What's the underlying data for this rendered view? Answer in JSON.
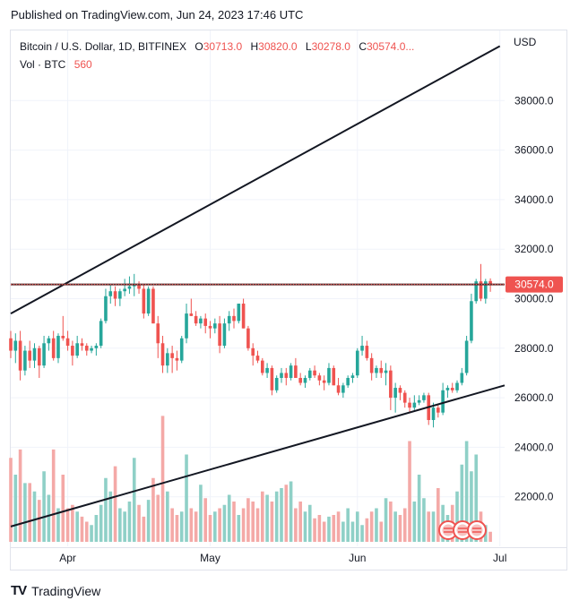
{
  "published": "Published on TradingView.com, Jun 24, 2023 17:46 UTC",
  "legend": {
    "symbol": "Bitcoin / U.S. Dollar, 1D, BITFINEX",
    "open_label": "O",
    "open": "30713.0",
    "high_label": "H",
    "high": "30820.0",
    "low_label": "L",
    "low": "30278.0",
    "close_label": "C",
    "close": "30574.0...",
    "vol_label": "Vol · BTC",
    "vol": "560"
  },
  "currency": "USD",
  "last_price_tag": "30574.0",
  "footer_brand": "TradingView",
  "colors": {
    "up": "#26a69a",
    "down": "#ef5350",
    "vol_up": "#8fd0c7",
    "vol_down": "#f4a9a7",
    "line": "#131722",
    "hline": "#5d2f2f",
    "grid": "#f0f3fa",
    "tag": "#ef5350"
  },
  "chart_data": {
    "type": "candlestick",
    "title": "Bitcoin / U.S. Dollar, 1D, BITFINEX",
    "y_ticks": [
      22000,
      24000,
      26000,
      28000,
      30000,
      32000,
      34000,
      36000,
      38000
    ],
    "y_tick_labels": [
      "22000.0",
      "24000.0",
      "26000.0",
      "28000.0",
      "30000.0",
      "32000.0",
      "34000.0",
      "36000.0",
      "38000.0"
    ],
    "ylim": [
      20000,
      40000
    ],
    "x_tick_labels": [
      "Apr",
      "May",
      "Jun",
      "Jul"
    ],
    "x_tick_dates": [
      "2023-04-01",
      "2023-05-01",
      "2023-06-01",
      "2023-07-01"
    ],
    "x_range": [
      "2023-03-20",
      "2023-07-02"
    ],
    "horizontal_line": 30574,
    "trendlines": [
      {
        "from": [
          "2023-03-20",
          29400
        ],
        "to": [
          "2023-07-01",
          40200
        ]
      },
      {
        "from": [
          "2023-03-20",
          20800
        ],
        "to": [
          "2023-07-02",
          26500
        ]
      }
    ],
    "series": [
      {
        "name": "OHLC",
        "start": "2023-03-20",
        "ohlc": [
          [
            28400,
            28700,
            27600,
            27900
          ],
          [
            27900,
            28600,
            27400,
            28300
          ],
          [
            28300,
            28700,
            26700,
            27100
          ],
          [
            27100,
            28100,
            26900,
            27900
          ],
          [
            27900,
            28300,
            27200,
            27500
          ],
          [
            27500,
            28200,
            27200,
            28000
          ],
          [
            28000,
            28100,
            26800,
            27300
          ],
          [
            27300,
            28500,
            27200,
            28200
          ],
          [
            28200,
            28500,
            27900,
            28400
          ],
          [
            28400,
            28700,
            27500,
            27600
          ],
          [
            27600,
            28600,
            27400,
            28500
          ],
          [
            28500,
            29300,
            28300,
            28400
          ],
          [
            28400,
            28700,
            27900,
            28100
          ],
          [
            28100,
            28300,
            27300,
            27700
          ],
          [
            27700,
            28500,
            27600,
            28200
          ],
          [
            28200,
            28400,
            27900,
            28100
          ],
          [
            28100,
            28200,
            27700,
            27900
          ],
          [
            27900,
            28100,
            27800,
            28000
          ],
          [
            28000,
            28200,
            27700,
            28100
          ],
          [
            28100,
            29200,
            28000,
            29100
          ],
          [
            29100,
            30400,
            29000,
            30100
          ],
          [
            30100,
            30600,
            29800,
            30300
          ],
          [
            30300,
            30500,
            29700,
            30000
          ],
          [
            30000,
            30400,
            29700,
            30300
          ],
          [
            30300,
            30800,
            30100,
            30400
          ],
          [
            30400,
            30900,
            30200,
            30500
          ],
          [
            30500,
            31000,
            30100,
            30600
          ],
          [
            30600,
            30700,
            30200,
            30400
          ],
          [
            30400,
            30600,
            29200,
            29400
          ],
          [
            29400,
            30500,
            29300,
            30400
          ],
          [
            30400,
            30500,
            29000,
            29000
          ],
          [
            29000,
            29300,
            27600,
            28200
          ],
          [
            28200,
            28500,
            27000,
            27300
          ],
          [
            27300,
            28000,
            27000,
            27800
          ],
          [
            27800,
            28100,
            27000,
            27600
          ],
          [
            27600,
            27900,
            27100,
            27500
          ],
          [
            27500,
            28500,
            27400,
            28400
          ],
          [
            28400,
            29800,
            28200,
            29400
          ],
          [
            29400,
            30000,
            29300,
            29300
          ],
          [
            29300,
            29500,
            28900,
            29000
          ],
          [
            29000,
            29300,
            28800,
            29200
          ],
          [
            29200,
            29400,
            28600,
            28900
          ],
          [
            28900,
            29100,
            28400,
            28800
          ],
          [
            28800,
            29200,
            28600,
            29000
          ],
          [
            29000,
            29300,
            27800,
            28100
          ],
          [
            28100,
            29200,
            28000,
            29000
          ],
          [
            29000,
            29500,
            28700,
            29300
          ],
          [
            29300,
            29600,
            28800,
            29100
          ],
          [
            29100,
            29800,
            29000,
            29800
          ],
          [
            29800,
            30000,
            28800,
            28800
          ],
          [
            28800,
            28900,
            27900,
            28000
          ],
          [
            28000,
            28200,
            27300,
            27700
          ],
          [
            27700,
            27900,
            27400,
            27500
          ],
          [
            27500,
            27600,
            26900,
            27000
          ],
          [
            27000,
            27400,
            26800,
            27200
          ],
          [
            27200,
            27300,
            26100,
            26300
          ],
          [
            26300,
            26900,
            26200,
            26800
          ],
          [
            26800,
            27200,
            26600,
            27000
          ],
          [
            27000,
            27200,
            26500,
            26800
          ],
          [
            26800,
            27400,
            26700,
            27300
          ],
          [
            27300,
            27600,
            26900,
            26800
          ],
          [
            26800,
            27000,
            26500,
            26600
          ],
          [
            26600,
            26900,
            26400,
            26800
          ],
          [
            26800,
            27200,
            26700,
            27100
          ],
          [
            27100,
            27300,
            26800,
            26900
          ],
          [
            26900,
            27000,
            26500,
            26700
          ],
          [
            26700,
            26900,
            26300,
            26600
          ],
          [
            26600,
            27400,
            26500,
            27200
          ],
          [
            27200,
            27300,
            26500,
            26500
          ],
          [
            26500,
            26800,
            26100,
            26200
          ],
          [
            26200,
            26600,
            26000,
            26500
          ],
          [
            26500,
            26900,
            26400,
            26800
          ],
          [
            26800,
            27000,
            26600,
            26900
          ],
          [
            26900,
            28000,
            26800,
            27900
          ],
          [
            27900,
            28500,
            27700,
            28100
          ],
          [
            28100,
            28300,
            27500,
            27600
          ],
          [
            27600,
            27800,
            26700,
            27000
          ],
          [
            27000,
            27300,
            26800,
            27200
          ],
          [
            27200,
            27500,
            26800,
            27000
          ],
          [
            27000,
            27400,
            26500,
            27100
          ],
          [
            27100,
            27300,
            25500,
            26000
          ],
          [
            26000,
            26600,
            25400,
            26400
          ],
          [
            26400,
            26500,
            25900,
            26200
          ],
          [
            26200,
            26300,
            25600,
            25800
          ],
          [
            25800,
            26000,
            25400,
            25600
          ],
          [
            25600,
            26100,
            25500,
            25800
          ],
          [
            25800,
            26100,
            25700,
            25900
          ],
          [
            25900,
            26200,
            25800,
            26100
          ],
          [
            26100,
            26200,
            24900,
            25100
          ],
          [
            25100,
            25800,
            24800,
            25600
          ],
          [
            25600,
            25700,
            25200,
            25400
          ],
          [
            25400,
            26600,
            25300,
            26300
          ],
          [
            26300,
            26500,
            26000,
            26400
          ],
          [
            26400,
            26600,
            26200,
            26300
          ],
          [
            26300,
            26700,
            26200,
            26600
          ],
          [
            26600,
            27200,
            26500,
            27000
          ],
          [
            27000,
            28500,
            26900,
            28300
          ],
          [
            28300,
            30200,
            28200,
            29900
          ],
          [
            29900,
            30800,
            29800,
            30700
          ],
          [
            30700,
            31400,
            29900,
            30000
          ],
          [
            30000,
            30800,
            29800,
            30700
          ],
          [
            30713,
            30820,
            30278,
            30574
          ]
        ]
      },
      {
        "name": "Volume",
        "values": [
          50,
          40,
          55,
          35,
          35,
          30,
          25,
          42,
          28,
          55,
          20,
          40,
          20,
          22,
          18,
          15,
          12,
          10,
          16,
          22,
          38,
          30,
          45,
          20,
          18,
          24,
          50,
          22,
          15,
          25,
          38,
          28,
          75,
          30,
          20,
          16,
          18,
          52,
          20,
          18,
          34,
          26,
          16,
          18,
          20,
          22,
          28,
          24,
          16,
          20,
          26,
          24,
          20,
          30,
          28,
          24,
          30,
          32,
          34,
          36,
          20,
          24,
          18,
          22,
          14,
          16,
          12,
          15,
          16,
          18,
          12,
          20,
          12,
          18,
          10,
          14,
          18,
          20,
          12,
          26,
          24,
          18,
          16,
          20,
          60,
          24,
          40,
          26,
          18,
          18,
          32,
          22,
          16,
          22,
          30,
          46,
          60,
          42,
          52,
          18,
          10,
          6
        ]
      }
    ]
  }
}
